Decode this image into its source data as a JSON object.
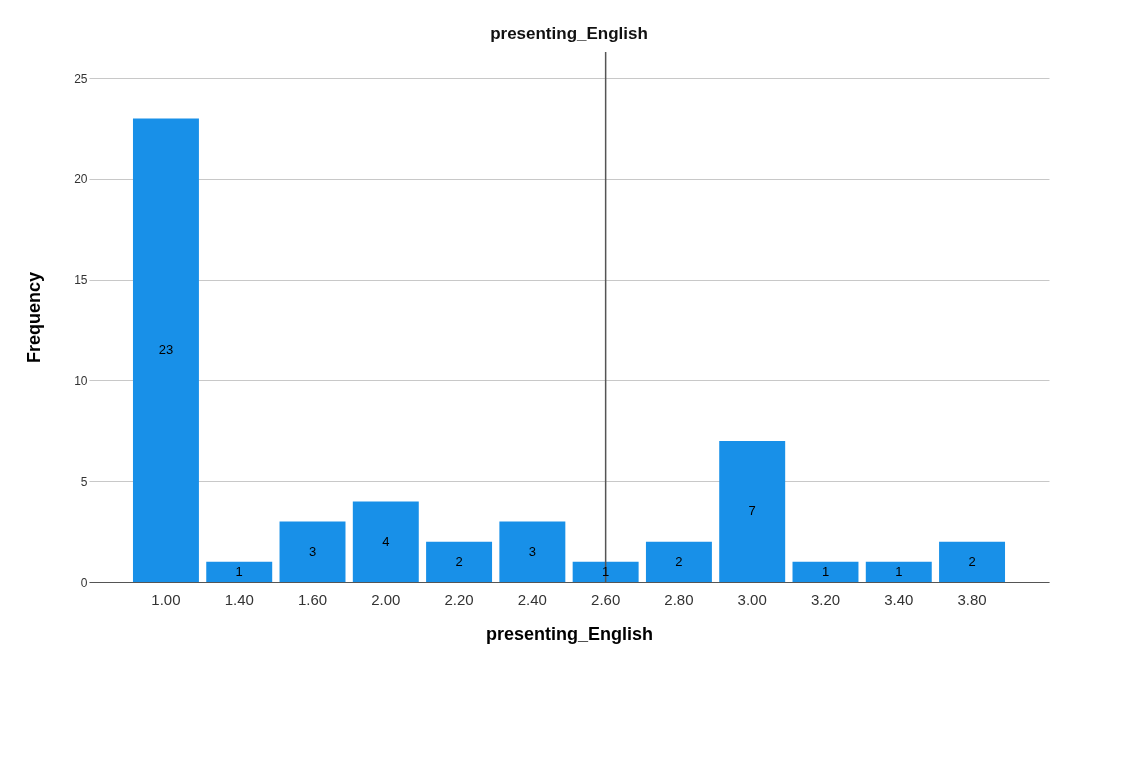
{
  "chart_data": {
    "type": "bar",
    "title": "presenting_English",
    "xlabel": "presenting_English",
    "ylabel": "Frequency",
    "categories": [
      "1.00",
      "1.40",
      "1.60",
      "2.00",
      "2.20",
      "2.40",
      "2.60",
      "2.80",
      "3.00",
      "3.20",
      "3.40",
      "3.80"
    ],
    "values": [
      23,
      1,
      3,
      4,
      2,
      3,
      1,
      2,
      7,
      1,
      1,
      2
    ],
    "color": "#1890e8",
    "ylim": [
      0,
      26.3
    ],
    "yticks": [
      0,
      5,
      10,
      15,
      20,
      25
    ],
    "grid": "y",
    "data_labels": true,
    "ref_lines": [
      {
        "axis": "x",
        "value": "2.60",
        "label": null,
        "color": "#555555"
      }
    ]
  }
}
